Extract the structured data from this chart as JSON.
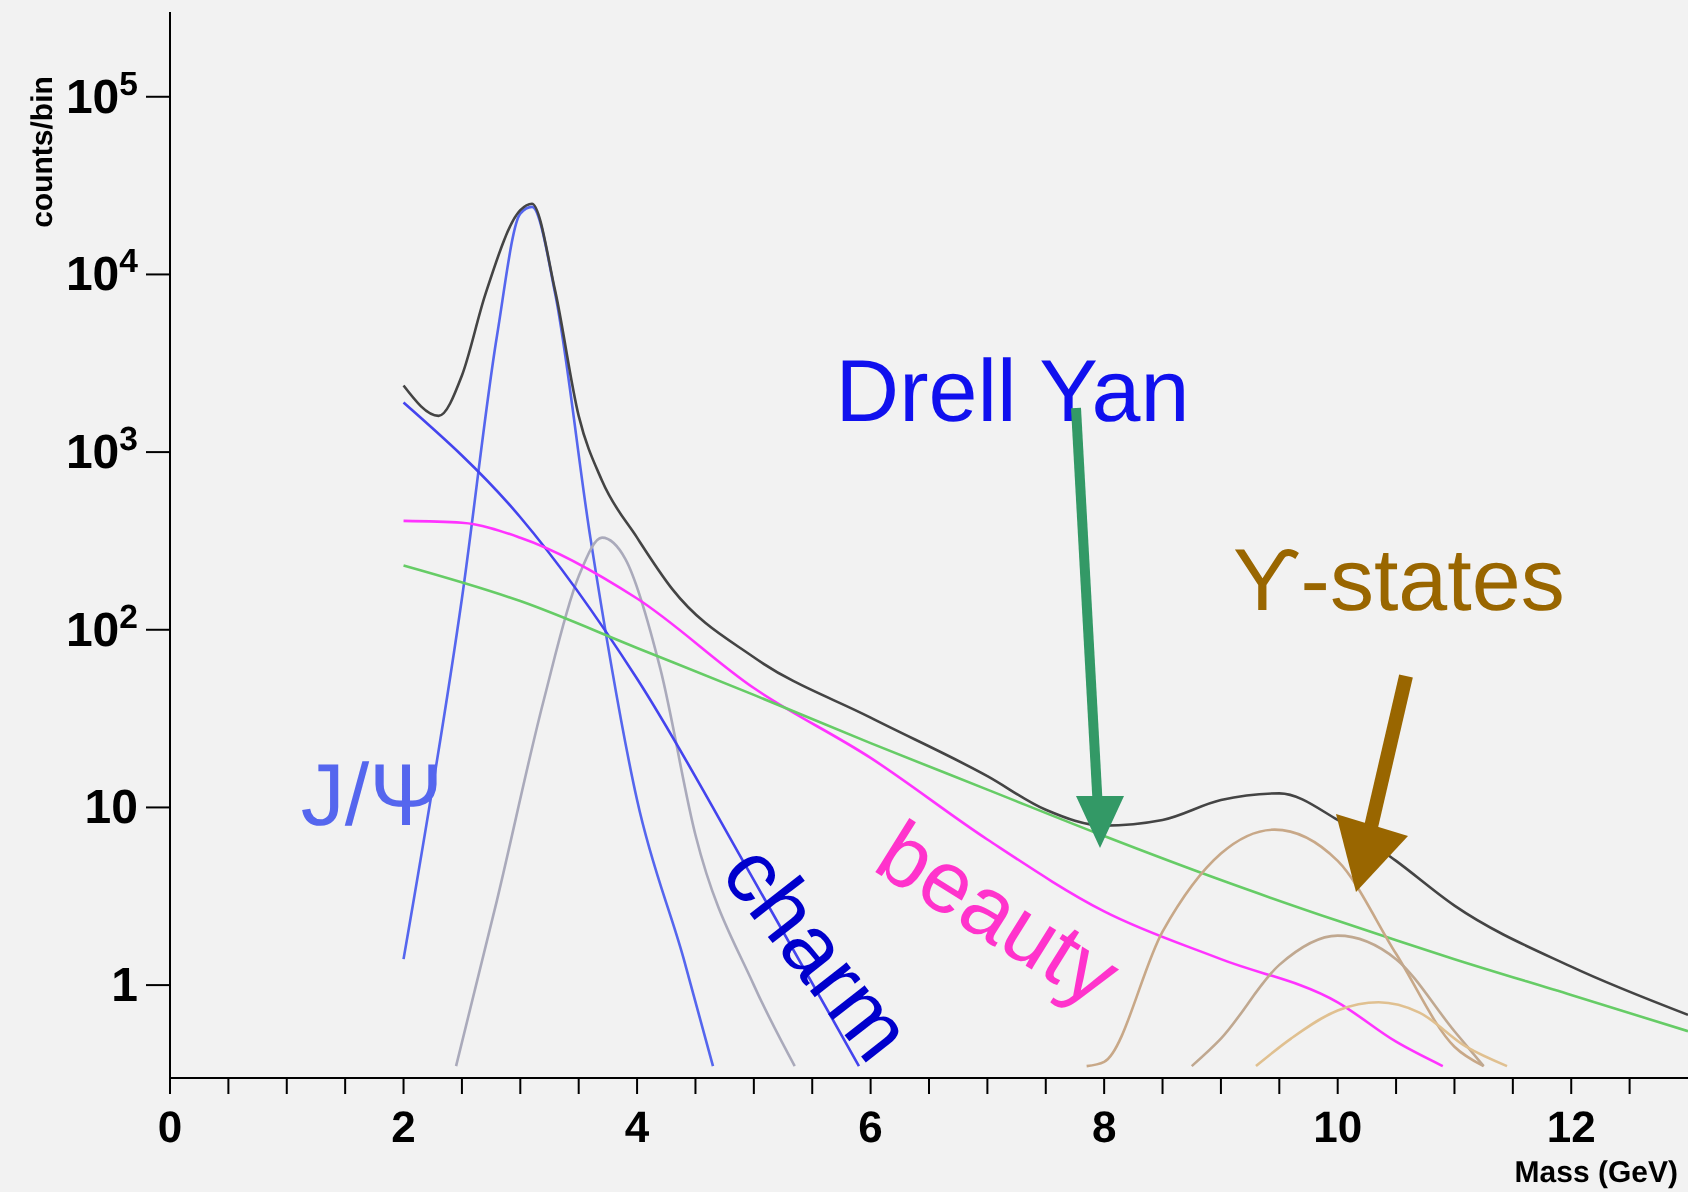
{
  "chart_data": {
    "type": "line",
    "xlabel": "Mass (GeV)",
    "ylabel": "counts/bin",
    "log": "y",
    "grid": false,
    "legend": false,
    "marker": "none",
    "line_style": "solid",
    "xlim": [
      0,
      13
    ],
    "xticks": [
      0,
      {
        "value": 0.5,
        "label": null
      },
      2,
      {
        "value": 1,
        "label": null
      },
      {
        "value": 1.5,
        "label": null
      },
      {
        "value": 2.5,
        "label": null
      },
      {
        "value": 3,
        "label": null
      },
      {
        "value": 3.5,
        "label": null
      },
      4,
      {
        "value": 4.5,
        "label": null
      },
      {
        "value": 5,
        "label": null
      },
      {
        "value": 5.5,
        "label": null
      },
      6,
      {
        "value": 6.5,
        "label": null
      },
      {
        "value": 7,
        "label": null
      },
      {
        "value": 7.5,
        "label": null
      },
      8,
      {
        "value": 8.5,
        "label": null
      },
      {
        "value": 9,
        "label": null
      },
      {
        "value": 9.5,
        "label": null
      },
      10,
      {
        "value": 10.5,
        "label": null
      },
      {
        "value": 11,
        "label": null
      },
      {
        "value": 11.5,
        "label": null
      },
      12,
      {
        "value": 12.5,
        "label": null
      }
    ],
    "ylim": [
      0.3,
      300000
    ],
    "yticks": [
      1,
      10,
      {
        "value": 100,
        "label": "10$^{2}$"
      },
      {
        "value": 1000,
        "label": "10$^{3}$"
      },
      {
        "value": 10000,
        "label": "10$^{4}$"
      },
      {
        "value": 100000,
        "label": "10$^{5}$"
      }
    ],
    "series": [
      {
        "name": "J/Ψ",
        "color": "#5566ee",
        "x": [
          2,
          2.5,
          2.8,
          3.0,
          3.1,
          3.3,
          3.6,
          4.0,
          4.4,
          4.65
        ],
        "values": [
          1.4,
          150,
          4500,
          22000,
          24000,
          7700,
          330,
          11,
          1.4,
          0.35
        ]
      },
      {
        "color": "#aaaabb",
        "x": [
          2.45,
          2.8,
          3.2,
          3.5,
          3.7,
          3.9,
          4.2,
          4.5,
          5.0,
          5.35
        ],
        "values": [
          0.35,
          3,
          40,
          200,
          330,
          250,
          60,
          7,
          1,
          0.35
        ]
      },
      {
        "name": "charm",
        "color": "#4444ee",
        "x": [
          2,
          3,
          4,
          5,
          5.7,
          5.9
        ],
        "values": [
          1900,
          430,
          53,
          3.9,
          0.6,
          0.35
        ]
      },
      {
        "name": "beauty",
        "color": "#ff33ff",
        "x": [
          2,
          2.5,
          3,
          4,
          5,
          6,
          7,
          8,
          9,
          10,
          10.5,
          10.9
        ],
        "values": [
          410,
          400,
          330,
          150,
          47,
          19,
          6.6,
          2.6,
          1.4,
          0.8,
          0.48,
          0.35
        ]
      },
      {
        "name": "Drell Yan",
        "color": "#66cc66",
        "x": [
          2,
          3,
          4,
          5,
          6,
          7,
          8,
          9,
          10,
          11,
          12,
          13
        ],
        "values": [
          230,
          145,
          79,
          43,
          23,
          12.6,
          6.9,
          3.9,
          2.3,
          1.4,
          0.88,
          0.55
        ]
      },
      {
        "name": "ϒ-states",
        "color": "#c8a888",
        "x": [
          7.85,
          8,
          8.5,
          9,
          9.46,
          10,
          10.5,
          11,
          11.25
        ],
        "values": [
          0.35,
          0.37,
          2,
          5.5,
          7.5,
          5,
          1.5,
          0.45,
          0.35
        ]
      },
      {
        "color": "#c0a890",
        "x": [
          8.75,
          9,
          9.5,
          10,
          10.5,
          11,
          11.25
        ],
        "values": [
          0.35,
          0.5,
          1.3,
          1.9,
          1.4,
          0.55,
          0.35
        ]
      },
      {
        "color": "#e0c090",
        "x": [
          9.3,
          9.6,
          10,
          10.35,
          10.7,
          11.1,
          11.45
        ],
        "values": [
          0.35,
          0.5,
          0.72,
          0.8,
          0.7,
          0.45,
          0.35
        ]
      },
      {
        "color": "#444444",
        "x": [
          2,
          2.3,
          2.5,
          2.7,
          3.0,
          3.1,
          3.3,
          3.5,
          3.7,
          4.0,
          4.3,
          5,
          6,
          7,
          7.5,
          8,
          8.5,
          9,
          9.5,
          10,
          10.5,
          11,
          12,
          13
        ],
        "values": [
          2370,
          1600,
          2700,
          7700,
          23000,
          25000,
          8000,
          1600,
          690,
          330,
          170,
          70,
          32,
          15,
          9.7,
          7.9,
          8.5,
          11,
          12,
          8.5,
          5,
          2.8,
          1.27,
          0.68
        ]
      }
    ]
  }
}
